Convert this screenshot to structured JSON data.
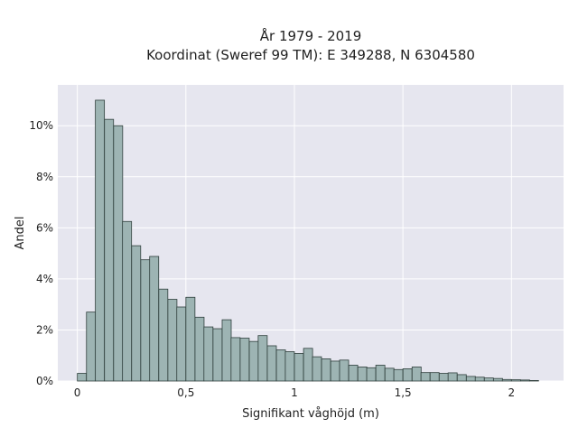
{
  "chart_data": {
    "type": "bar",
    "title": "År 1979 - 2019",
    "subtitle": "Koordinat (Sweref 99 TM): E 349288, N 6304580",
    "xlabel": "Signifikant våghöjd (m)",
    "ylabel": "Andel",
    "xlim": [
      -0.09,
      2.24
    ],
    "ylim": [
      0,
      11.6
    ],
    "x_ticks": [
      0,
      0.5,
      1,
      1.5,
      2
    ],
    "x_tick_labels": [
      "0",
      "0,5",
      "1",
      "1,5",
      "2"
    ],
    "y_ticks": [
      0,
      2,
      4,
      6,
      8,
      10
    ],
    "y_tick_labels": [
      "0%",
      "2%",
      "4%",
      "6%",
      "8%",
      "10%"
    ],
    "bin_width": 0.0417,
    "x": [
      0.021,
      0.063,
      0.104,
      0.146,
      0.188,
      0.229,
      0.271,
      0.313,
      0.354,
      0.396,
      0.438,
      0.479,
      0.521,
      0.563,
      0.604,
      0.646,
      0.688,
      0.729,
      0.771,
      0.813,
      0.854,
      0.896,
      0.938,
      0.979,
      1.021,
      1.063,
      1.104,
      1.146,
      1.188,
      1.229,
      1.271,
      1.313,
      1.354,
      1.396,
      1.438,
      1.479,
      1.521,
      1.563,
      1.604,
      1.646,
      1.688,
      1.729,
      1.771,
      1.813,
      1.854,
      1.896,
      1.938,
      1.979,
      2.021,
      2.063,
      2.104
    ],
    "values": [
      0.3,
      2.7,
      11.0,
      10.25,
      10.0,
      6.25,
      5.3,
      4.75,
      4.88,
      3.6,
      3.2,
      2.9,
      3.28,
      2.5,
      2.12,
      2.05,
      2.4,
      1.7,
      1.68,
      1.55,
      1.78,
      1.38,
      1.22,
      1.15,
      1.08,
      1.28,
      0.95,
      0.87,
      0.78,
      0.82,
      0.62,
      0.55,
      0.52,
      0.62,
      0.5,
      0.45,
      0.48,
      0.55,
      0.33,
      0.33,
      0.3,
      0.32,
      0.25,
      0.18,
      0.15,
      0.12,
      0.1,
      0.06,
      0.05,
      0.04,
      0.02
    ],
    "grid": true,
    "colors": {
      "background": "#e6e6ef",
      "bar_fill": "#9db4b3",
      "bar_edge": "#2f3f3c",
      "grid": "#ffffff"
    }
  }
}
